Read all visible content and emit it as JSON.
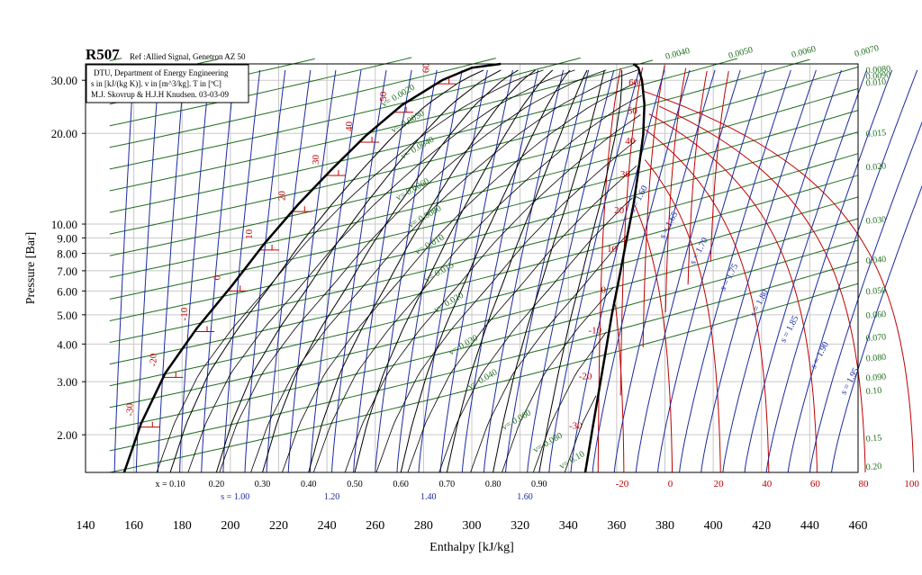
{
  "title": "R507",
  "ref": "Ref :Allied Signal, Genetron AZ 50",
  "info_lines": [
    "DTU, Department of Energy Engineering",
    "s in [kJ/(kg K)]. v in [m^3/kg]. T in [ºC]",
    "M.J. Skovrup & H.J.H Knudsen. 03-03-09"
  ],
  "chart_data": {
    "type": "line",
    "title": "R507",
    "xlabel": "Enthalpy [kJ/kg]",
    "ylabel": "Pressure [Bar]",
    "xlim": [
      140,
      460
    ],
    "ylim": [
      1.5,
      34
    ],
    "yscale": "log",
    "x_ticks": [
      "140",
      "160",
      "180",
      "200",
      "220",
      "240",
      "260",
      "280",
      "300",
      "320",
      "340",
      "360",
      "380",
      "400",
      "420",
      "440",
      "460"
    ],
    "y_ticks": [
      "2.00",
      "3.00",
      "4.00",
      "5.00",
      "6.00",
      "7.00",
      "8.00",
      "9.00",
      "10.00",
      "20.00",
      "30.00"
    ],
    "grid": true,
    "colors": {
      "saturation": "#000000",
      "quality": "#000000",
      "entropy": "#1a2aa0",
      "volume": "#1e6e1e",
      "temperature": "#c00000"
    },
    "saturation_curve": {
      "liquid": [
        [
          156.0,
          1.5
        ],
        [
          163.0,
          2.18
        ],
        [
          173.0,
          3.2
        ],
        [
          186.0,
          4.5
        ],
        [
          201.0,
          6.3
        ],
        [
          214.0,
          8.6
        ],
        [
          228.0,
          11.6
        ],
        [
          242.0,
          15.2
        ],
        [
          256.0,
          19.6
        ],
        [
          271.0,
          24.8
        ],
        [
          288.0,
          30.1
        ],
        [
          300.0,
          33.0
        ],
        [
          312.0,
          34.0
        ]
      ],
      "vapor": [
        [
          347.0,
          1.5
        ],
        [
          350.0,
          2.1
        ],
        [
          353.0,
          2.9
        ],
        [
          355.5,
          3.8
        ],
        [
          358.0,
          5.0
        ],
        [
          361.0,
          6.6
        ],
        [
          364.0,
          8.8
        ],
        [
          367.0,
          11.6
        ],
        [
          369.0,
          15.0
        ],
        [
          371.0,
          19.8
        ],
        [
          371.5,
          25.0
        ],
        [
          370.5,
          30.0
        ],
        [
          369.0,
          33.0
        ],
        [
          367.0,
          34.0
        ]
      ]
    },
    "quality_labels": [
      "x = 0.10",
      "0.20",
      "0.30",
      "0.40",
      "0.50",
      "0.60",
      "0.70",
      "0.80",
      "0.90"
    ],
    "entropy_labels": [
      "s = 1.00",
      "1.20",
      "1.40",
      "1.60"
    ],
    "vapor_entropy_labels": [
      "s = 1.60",
      "s = 1.65",
      "s = 1.70",
      "s = 1.75",
      "s = 1.80",
      "s = 1.85",
      "s = 1.90",
      "s = 1.95"
    ],
    "volume_labels_right": [
      "0.0040",
      "0.0050",
      "0.0060",
      "0.0070",
      "0.0080",
      "0.0090",
      "0.010",
      "0.015",
      "0.020",
      "0.030",
      "0.040",
      "0.050",
      "0.060",
      "0.070",
      "0.080",
      "0.090",
      "0.10",
      "0.15",
      "0.20"
    ],
    "volume_labels_inside": [
      "v= 0.0020",
      "v= 0.0030",
      "v= 0.0040",
      "v= 0.0060",
      "v= 0.0080",
      "v= 0.010",
      "v= 0.015",
      "v= 0.020",
      "v= 0.030",
      "v= 0.040",
      "v= 0.060",
      "v= 0.080",
      "v= 0.10"
    ],
    "temperature_labels_liquid": [
      {
        "label": "-30",
        "h": 160.0,
        "p": 2.12
      },
      {
        "label": "-20",
        "h": 173.5,
        "p": 3.1
      },
      {
        "label": "-10",
        "h": 187.5,
        "p": 4.4
      },
      {
        "label": "0",
        "h": 201.5,
        "p": 6.0
      },
      {
        "label": "10",
        "h": 215.5,
        "p": 8.2
      },
      {
        "label": "20",
        "h": 229.0,
        "p": 11.0
      },
      {
        "label": "30",
        "h": 243.0,
        "p": 14.5
      },
      {
        "label": "40",
        "h": 257.0,
        "p": 18.7
      },
      {
        "label": "50",
        "h": 271.0,
        "p": 23.5
      },
      {
        "label": "60",
        "h": 287.0,
        "p": 29.2
      }
    ],
    "temperature_labels_vapor": [
      {
        "label": "-30",
        "h": 347.5,
        "p": 2.12
      },
      {
        "label": "-20",
        "h": 351.5,
        "p": 3.1
      },
      {
        "label": "-10",
        "h": 355.5,
        "p": 4.4
      },
      {
        "label": "0",
        "h": 359.0,
        "p": 6.0
      },
      {
        "label": "10",
        "h": 362.5,
        "p": 8.2
      },
      {
        "label": "20",
        "h": 365.5,
        "p": 11.0
      },
      {
        "label": "30",
        "h": 368.0,
        "p": 14.5
      },
      {
        "label": "40",
        "h": 370.0,
        "p": 18.7
      },
      {
        "label": "50",
        "h": 371.0,
        "p": 23.5
      },
      {
        "label": "60",
        "h": 371.5,
        "p": 29.2
      }
    ],
    "temperature_labels_bottom": [
      "-20",
      "0",
      "20",
      "40",
      "60",
      "80",
      "100"
    ]
  }
}
